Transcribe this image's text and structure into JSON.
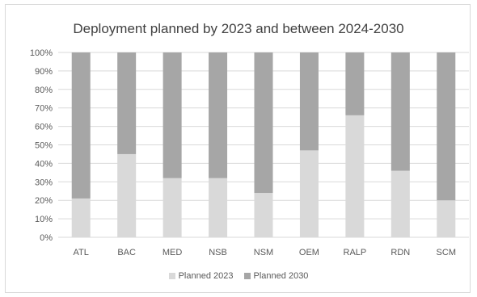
{
  "chart_data": {
    "type": "bar",
    "stacked": true,
    "title": "Deployment planned by 2023 and between 2024-2030",
    "xlabel": "",
    "ylabel": "",
    "ylim": [
      0,
      100
    ],
    "y_ticks": [
      "0%",
      "10%",
      "20%",
      "30%",
      "40%",
      "50%",
      "60%",
      "70%",
      "80%",
      "90%",
      "100%"
    ],
    "categories": [
      "ATL",
      "BAC",
      "MED",
      "NSB",
      "NSM",
      "OEM",
      "RALP",
      "RDN",
      "SCM"
    ],
    "series": [
      {
        "name": "Planned 2023",
        "color": "#d9d9d9",
        "values": [
          21,
          45,
          32,
          32,
          24,
          47,
          66,
          36,
          20
        ]
      },
      {
        "name": "Planned 2030",
        "color": "#a6a6a6",
        "values": [
          79,
          55,
          68,
          68,
          76,
          53,
          34,
          64,
          80
        ]
      }
    ],
    "grid": true,
    "legend_position": "bottom"
  }
}
